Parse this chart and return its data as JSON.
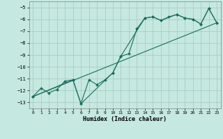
{
  "title": "",
  "xlabel": "Humidex (Indice chaleur)",
  "bg_color": "#c5e8e0",
  "grid_color": "#aaccc4",
  "line_color": "#1a6e5e",
  "xlim": [
    -0.5,
    23.5
  ],
  "ylim": [
    -13.5,
    -4.5
  ],
  "xticks": [
    0,
    1,
    2,
    3,
    4,
    5,
    6,
    7,
    8,
    9,
    10,
    11,
    12,
    13,
    14,
    15,
    16,
    17,
    18,
    19,
    20,
    21,
    22,
    23
  ],
  "yticks": [
    -13,
    -12,
    -11,
    -10,
    -9,
    -8,
    -7,
    -6,
    -5
  ],
  "line1_x": [
    0,
    1,
    2,
    3,
    4,
    5,
    6,
    7,
    8,
    9,
    10,
    11,
    12,
    13,
    14,
    15,
    16,
    17,
    18,
    19,
    20,
    21,
    22,
    23
  ],
  "line1_y": [
    -12.5,
    -11.8,
    -12.2,
    -11.9,
    -11.2,
    -11.1,
    -13.1,
    -11.1,
    -11.5,
    -11.1,
    -10.5,
    -9.1,
    -8.9,
    -6.8,
    -5.9,
    -5.8,
    -6.1,
    -5.8,
    -5.6,
    -5.9,
    -6.0,
    -6.4,
    -5.1,
    -6.3
  ],
  "line2_x": [
    0,
    5,
    6,
    10,
    11,
    14,
    15,
    16,
    18,
    19,
    20,
    21,
    22,
    23
  ],
  "line2_y": [
    -12.5,
    -11.1,
    -13.1,
    -10.5,
    -9.1,
    -5.9,
    -5.8,
    -6.1,
    -5.6,
    -5.9,
    -6.0,
    -6.4,
    -5.1,
    -6.3
  ],
  "line3_x": [
    0,
    23
  ],
  "line3_y": [
    -12.5,
    -6.3
  ],
  "xlabel_fontsize": 6,
  "tick_fontsize": 5,
  "linewidth": 0.8,
  "markersize": 2.0
}
